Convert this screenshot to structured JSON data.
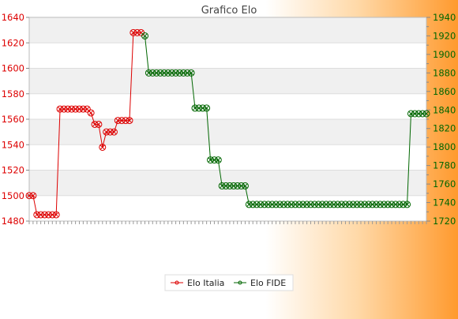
{
  "chart_data": {
    "type": "line",
    "title": "Grafico Elo",
    "grid": true,
    "legend_position": "bottom-center",
    "x": [
      1,
      2,
      3,
      4,
      5,
      6,
      7,
      8,
      9,
      10,
      11,
      12,
      13,
      14,
      15,
      16,
      17,
      18,
      19,
      20,
      21,
      22,
      23,
      24,
      25,
      26,
      27,
      28,
      29,
      30,
      31,
      32,
      33,
      34,
      35,
      36,
      37,
      38,
      39,
      40,
      41,
      42,
      43,
      44,
      45,
      46,
      47,
      48,
      49,
      50,
      51,
      52,
      53,
      54,
      55,
      56,
      57,
      58,
      59,
      60,
      61,
      62,
      63,
      64,
      65,
      66,
      67,
      68,
      69,
      70,
      71,
      72,
      73,
      74,
      75,
      76,
      77,
      78,
      79,
      80,
      81,
      82,
      83,
      84,
      85,
      86,
      87,
      88,
      89,
      90,
      91,
      92,
      93,
      94,
      95,
      96,
      97,
      98,
      99,
      100,
      101,
      102,
      103,
      104
    ],
    "left_axis": {
      "ylim": [
        1480,
        1640
      ],
      "ticks": [
        "1480",
        "1500",
        "1520",
        "1540",
        "1560",
        "1580",
        "1600",
        "1620",
        "1640"
      ],
      "color": "#dd0000"
    },
    "right_axis": {
      "ylim": [
        1720,
        1940
      ],
      "ticks": [
        "1720",
        "1740",
        "1760",
        "1780",
        "1800",
        "1820",
        "1840",
        "1860",
        "1880",
        "1900",
        "1920",
        "1940"
      ],
      "color": "#006600"
    },
    "series": [
      {
        "name": "Elo Italia",
        "axis": "left",
        "color": "#dd0000",
        "x": [
          1,
          2,
          3,
          4,
          5,
          6,
          7,
          8,
          9,
          10,
          11,
          12,
          13,
          14,
          15,
          16,
          17,
          18,
          19,
          20,
          21,
          22,
          23,
          24,
          25,
          26,
          27,
          28,
          29,
          30
        ],
        "values": [
          1500,
          1500,
          1485,
          1485,
          1485,
          1485,
          1485,
          1485,
          1568,
          1568,
          1568,
          1568,
          1568,
          1568,
          1568,
          1568,
          1565,
          1556,
          1556,
          1538,
          1550,
          1550,
          1550,
          1559,
          1559,
          1559,
          1559,
          1628,
          1628,
          1628
        ]
      },
      {
        "name": "Elo FIDE",
        "axis": "right",
        "color": "#006600",
        "x": [
          31,
          32,
          33,
          34,
          35,
          36,
          37,
          38,
          39,
          40,
          41,
          42,
          43,
          44,
          45,
          46,
          47,
          48,
          49,
          50,
          51,
          52,
          53,
          54,
          55,
          56,
          57,
          58,
          59,
          60,
          61,
          62,
          63,
          64,
          65,
          66,
          67,
          68,
          69,
          70,
          71,
          72,
          73,
          74,
          75,
          76,
          77,
          78,
          79,
          80,
          81,
          82,
          83,
          84,
          85,
          86,
          87,
          88,
          89,
          90,
          91,
          92,
          93,
          94,
          95,
          96,
          97,
          98,
          99,
          100,
          101,
          102,
          103,
          104
        ],
        "values": [
          1920,
          1880,
          1880,
          1880,
          1880,
          1880,
          1880,
          1880,
          1880,
          1880,
          1880,
          1880,
          1880,
          1842,
          1842,
          1842,
          1842,
          1786,
          1786,
          1786,
          1758,
          1758,
          1758,
          1758,
          1758,
          1758,
          1758,
          1738,
          1738,
          1738,
          1738,
          1738,
          1738,
          1738,
          1738,
          1738,
          1738,
          1738,
          1738,
          1738,
          1738,
          1738,
          1738,
          1738,
          1738,
          1738,
          1738,
          1738,
          1738,
          1738,
          1738,
          1738,
          1738,
          1738,
          1738,
          1738,
          1738,
          1738,
          1738,
          1738,
          1738,
          1738,
          1738,
          1738,
          1738,
          1738,
          1738,
          1738,
          1738,
          1836,
          1836,
          1836,
          1836,
          1836
        ]
      }
    ]
  }
}
